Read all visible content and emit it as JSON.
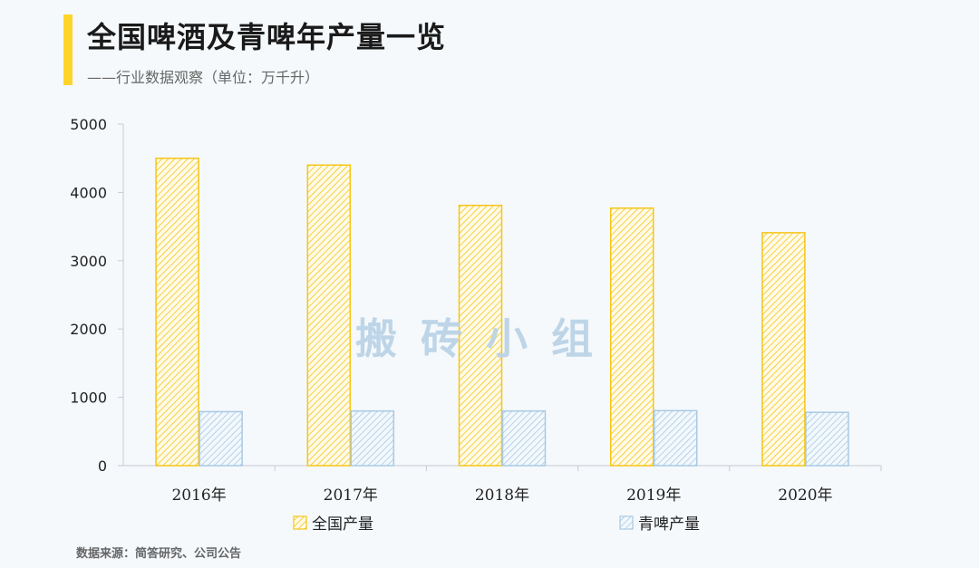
{
  "header": {
    "title": "全国啤酒及青啤年产量一览",
    "subtitle": "——行业数据观察（单位：万千升）"
  },
  "footer": {
    "source": "数据来源：简答研究、公司公告"
  },
  "watermark": "搬砖小组",
  "colors": {
    "accent": "#ffd42a",
    "series1": "#f5c518",
    "series2": "#a9c9e3"
  },
  "chart_data": {
    "type": "bar",
    "title": "全国啤酒及青啤年产量一览",
    "subtitle": "——行业数据观察（单位：万千升）",
    "categories": [
      "2016年",
      "2017年",
      "2018年",
      "2019年",
      "2020年"
    ],
    "series": [
      {
        "name": "全国产量",
        "values": [
          4500,
          4400,
          3810,
          3770,
          3410
        ]
      },
      {
        "name": "青啤产量",
        "values": [
          790,
          800,
          800,
          805,
          780
        ]
      }
    ],
    "ylim": [
      0,
      5000
    ],
    "yticks": [
      0,
      1000,
      2000,
      3000,
      4000,
      5000
    ],
    "xlabel": "",
    "ylabel": "",
    "grid": false,
    "legend": "bottom"
  }
}
